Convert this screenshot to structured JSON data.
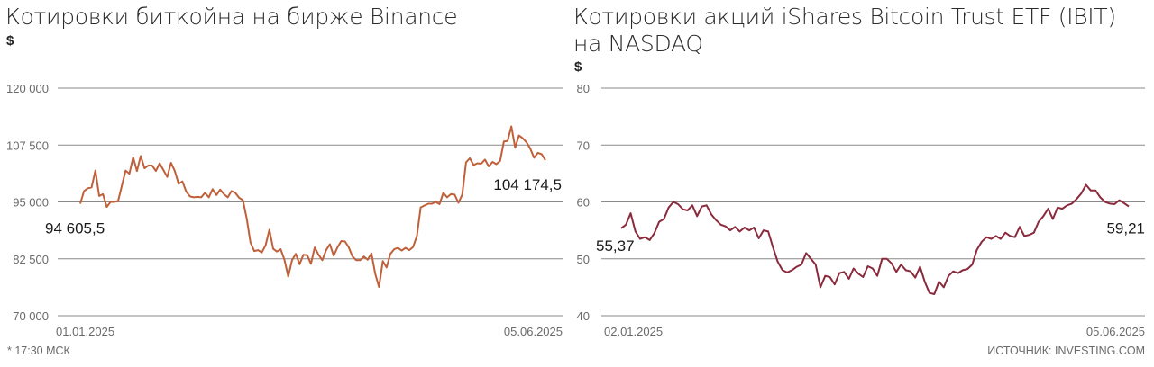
{
  "chart_data": [
    {
      "type": "line",
      "title": "Котировки биткойна на бирже Binance",
      "ylabel": "$",
      "ylim": [
        70000,
        120000
      ],
      "yticks": [
        70000,
        82500,
        95000,
        107500,
        120000
      ],
      "ytick_labels": [
        "70 000",
        "82 500",
        "95 000",
        "107 500",
        "120 000"
      ],
      "xticks": [
        "01.01.2025",
        "05.06.2025"
      ],
      "line_color": "#c0603a",
      "grid": true,
      "start_label": "94 605,5",
      "end_label": "104 174,5",
      "series": [
        {
          "values": [
            94605.5,
            97400,
            98000,
            98200,
            101900,
            96300,
            96700,
            93900,
            95000,
            95000,
            95200,
            98500,
            101900,
            101200,
            104800,
            101800,
            105100,
            102400,
            103000,
            103000,
            101800,
            103500,
            102000,
            100500,
            103600,
            101800,
            99000,
            99500,
            97300,
            96200,
            96000,
            96100,
            96000,
            97000,
            96000,
            97800,
            96500,
            97700,
            96700,
            96000,
            97400,
            97000,
            95900,
            95400,
            91400,
            86100,
            84200,
            84400,
            83900,
            85500,
            88900,
            84700,
            84100,
            84600,
            82300,
            78600,
            82200,
            83600,
            81300,
            83400,
            83300,
            81400,
            85000,
            83400,
            82200,
            84400,
            85700,
            83200,
            85000,
            86400,
            86300,
            85000,
            83000,
            82200,
            82200,
            83000,
            82300,
            83700,
            79200,
            76300,
            82000,
            80600,
            83600,
            84600,
            84900,
            84300,
            84900,
            84400,
            85100,
            87500,
            93800,
            94200,
            94600,
            94600,
            95000,
            94500,
            97000,
            96000,
            96700,
            96600,
            94800,
            96600,
            103700,
            104600,
            103100,
            103500,
            103400,
            104300,
            102800,
            103800,
            103300,
            104000,
            108300,
            108400,
            111600,
            106900,
            109600,
            109000,
            108100,
            106700,
            104700,
            105800,
            105500,
            104174.5
          ]
        }
      ]
    },
    {
      "type": "line",
      "title": "Котировки акций iShares Bitcoin Trust ETF (IBIT) на NASDAQ",
      "ylabel": "$",
      "ylim": [
        40,
        80
      ],
      "yticks": [
        40,
        50,
        60,
        70,
        80
      ],
      "ytick_labels": [
        "40",
        "50",
        "60",
        "70",
        "80"
      ],
      "xticks": [
        "02.01.2025",
        "05.06.2025"
      ],
      "line_color": "#8a2a3c",
      "grid": true,
      "start_label": "55,37",
      "end_label": "59,21",
      "series": [
        {
          "values": [
            55.37,
            56.0,
            58.0,
            54.8,
            53.5,
            53.8,
            53.3,
            54.5,
            56.5,
            57.0,
            59.0,
            60.0,
            59.6,
            58.7,
            58.5,
            59.4,
            57.5,
            59.2,
            59.4,
            57.8,
            56.8,
            56.0,
            55.7,
            55.0,
            55.6,
            54.8,
            55.5,
            55.0,
            55.5,
            53.6,
            55.0,
            54.8,
            52.0,
            49.5,
            48.0,
            47.6,
            48.0,
            48.6,
            49.0,
            51.0,
            50.0,
            49.0,
            45.0,
            47.0,
            46.8,
            45.5,
            47.5,
            47.7,
            46.5,
            48.3,
            47.4,
            46.8,
            48.7,
            48.3,
            47.0,
            50.0,
            50.0,
            49.2,
            47.7,
            49.0,
            48.0,
            47.8,
            46.7,
            48.6,
            46.0,
            44.0,
            43.8,
            46.0,
            45.0,
            47.0,
            47.8,
            47.5,
            48.0,
            48.2,
            49.0,
            51.6,
            53.0,
            53.8,
            53.5,
            54.0,
            53.5,
            54.6,
            54.0,
            53.8,
            55.6,
            54.0,
            54.2,
            54.6,
            56.5,
            57.5,
            58.8,
            57.0,
            59.0,
            58.8,
            59.4,
            59.7,
            60.5,
            61.5,
            63.0,
            62.0,
            62.0,
            60.8,
            60.0,
            59.7,
            59.6,
            60.3,
            59.8,
            59.21
          ]
        }
      ]
    }
  ],
  "footer": {
    "note": "* 17:30 МСК",
    "source": "ИСТОЧНИК: INVESTING.COM"
  }
}
